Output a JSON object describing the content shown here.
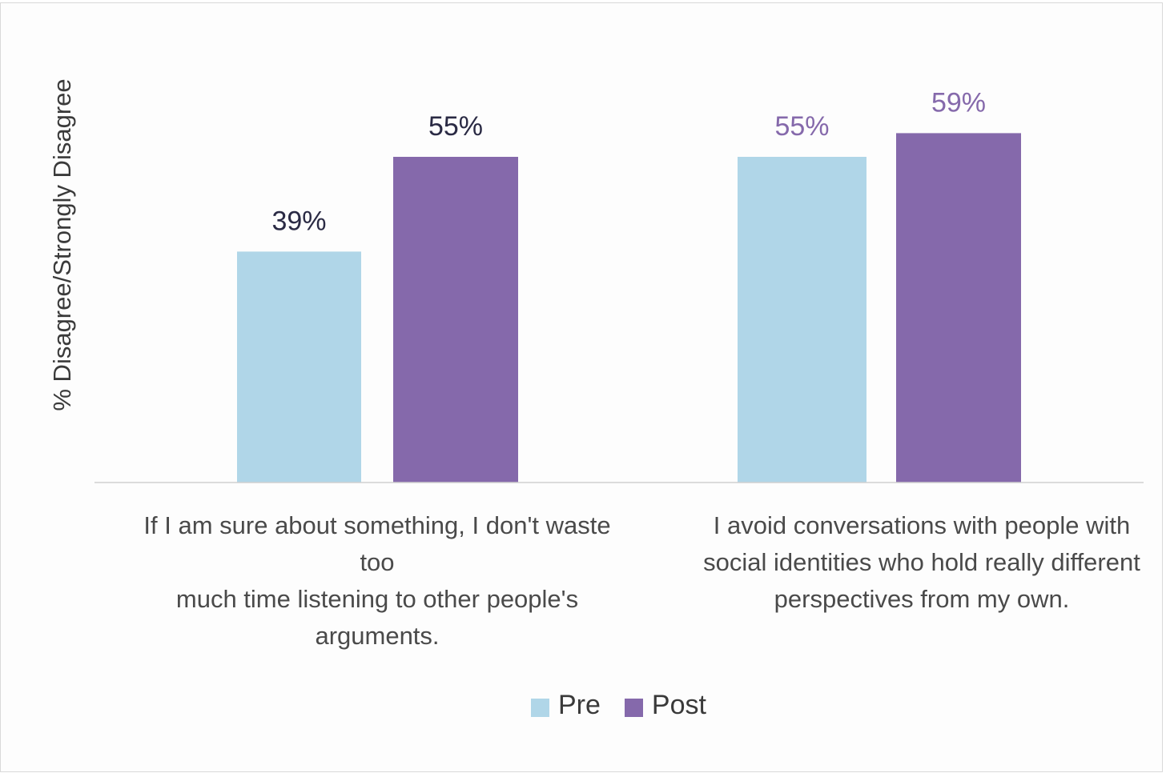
{
  "chart_data": {
    "type": "bar",
    "title": "",
    "xlabel": "",
    "ylabel": "% Disagree/Strongly Disagree",
    "ylim": [
      0,
      65
    ],
    "grid": false,
    "legend_position": "bottom-center",
    "categories": [
      "If I am sure about something, I don't waste too much time listening to other people's arguments.",
      "I avoid conversations with people with social identities who hold really different perspectives from my own."
    ],
    "category_lines": [
      [
        "If I am sure about something, I don't waste",
        "too",
        "much time listening to other people's",
        "arguments."
      ],
      [
        "I avoid conversations with people with",
        "social identities who hold really different",
        "perspectives from my own."
      ]
    ],
    "series": [
      {
        "name": "Pre",
        "values": [
          39,
          55
        ],
        "labels": [
          "39%",
          "55%"
        ],
        "color": "#b0d6e8"
      },
      {
        "name": "Post",
        "values": [
          55,
          59
        ],
        "labels": [
          "55%",
          "59%"
        ],
        "color": "#8569ab"
      }
    ],
    "label_colors": [
      [
        "#2a2a44",
        "#8569ab"
      ],
      [
        "#2a2a44",
        "#8569ab"
      ]
    ]
  }
}
